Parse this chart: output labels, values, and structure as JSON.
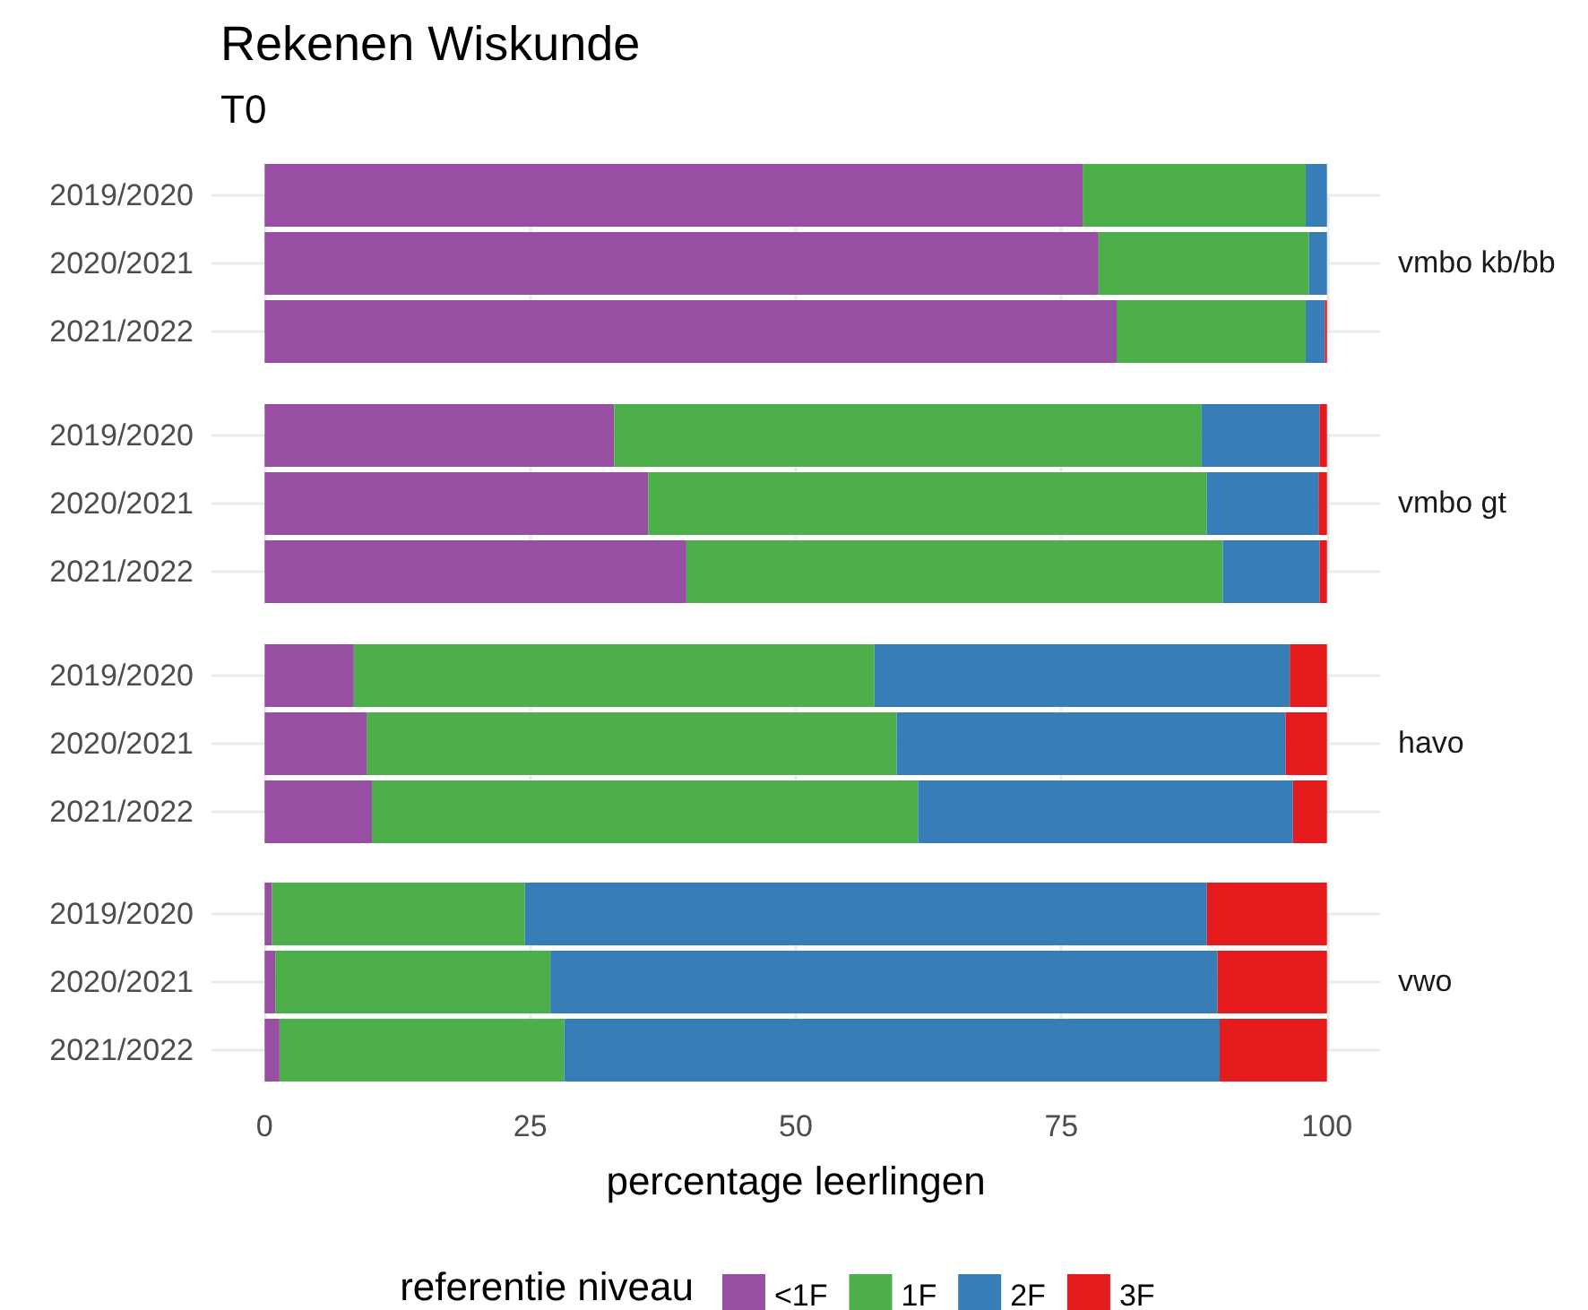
{
  "chart_data": [
    {
      "type": "bar",
      "title": "Rekenen Wiskunde",
      "subtitle": "T0",
      "y2label": "vmbo kb/bb",
      "orientation": "horizontal",
      "stacked": true,
      "categories": [
        "2019/2020",
        "2020/2021",
        "2021/2022"
      ],
      "xlim": [
        -5,
        105
      ],
      "xticks": [
        0,
        25,
        50,
        75,
        100
      ],
      "grid": true,
      "tick_labels": "y",
      "series": [
        {
          "color": "#984ea3",
          "values": [
            77.0,
            78.5,
            80.2
          ]
        },
        {
          "color": "#4daf4a",
          "values": [
            21.0,
            19.8,
            17.8
          ]
        },
        {
          "color": "#377eb8",
          "values": [
            2.0,
            1.7,
            1.8
          ]
        },
        {
          "color": "#e41a1c",
          "values": [
            0,
            0,
            0.2
          ]
        }
      ]
    },
    {
      "type": "bar",
      "y2label": "vmbo gt",
      "orientation": "horizontal",
      "stacked": true,
      "categories": [
        "2019/2020",
        "2020/2021",
        "2021/2022"
      ],
      "xlim": [
        -5,
        105
      ],
      "xticks": [
        0,
        25,
        50,
        75,
        100
      ],
      "grid": true,
      "tick_labels": "y",
      "series": [
        {
          "color": "#984ea3",
          "values": [
            32.9,
            36.1,
            39.7
          ]
        },
        {
          "color": "#4daf4a",
          "values": [
            55.3,
            52.6,
            50.5
          ]
        },
        {
          "color": "#377eb8",
          "values": [
            11.1,
            10.5,
            9.1
          ]
        },
        {
          "color": "#e41a1c",
          "values": [
            0.7,
            0.8,
            0.7
          ]
        }
      ]
    },
    {
      "type": "bar",
      "y2label": "havo",
      "orientation": "horizontal",
      "stacked": true,
      "categories": [
        "2019/2020",
        "2020/2021",
        "2021/2022"
      ],
      "xlim": [
        -5,
        105
      ],
      "xticks": [
        0,
        25,
        50,
        75,
        100
      ],
      "grid": true,
      "tick_labels": "y",
      "series": [
        {
          "color": "#984ea3",
          "values": [
            8.4,
            9.6,
            10.1
          ]
        },
        {
          "color": "#4daf4a",
          "values": [
            49.0,
            49.9,
            51.4
          ]
        },
        {
          "color": "#377eb8",
          "values": [
            39.1,
            36.6,
            35.3
          ]
        },
        {
          "color": "#e41a1c",
          "values": [
            3.5,
            3.9,
            3.2
          ]
        }
      ]
    },
    {
      "type": "bar",
      "y2label": "vwo",
      "xlabel": "percentage leerlingen",
      "legend_title": "referentie niveau",
      "legend": "bottom",
      "orientation": "horizontal",
      "stacked": true,
      "categories": [
        "2019/2020",
        "2020/2021",
        "2021/2022"
      ],
      "xlim": [
        -5,
        105
      ],
      "xticks": [
        0,
        25,
        50,
        75,
        100
      ],
      "grid": true,
      "series": [
        {
          "name": "<1F",
          "color": "#984ea3",
          "values": [
            0.7,
            1.0,
            1.4
          ]
        },
        {
          "name": "1F",
          "color": "#4daf4a",
          "values": [
            23.8,
            25.9,
            26.8
          ]
        },
        {
          "name": "2F",
          "color": "#377eb8",
          "values": [
            64.2,
            62.8,
            61.7
          ]
        },
        {
          "name": "3F",
          "color": "#e41a1c",
          "values": [
            11.3,
            10.3,
            10.1
          ]
        }
      ]
    }
  ]
}
